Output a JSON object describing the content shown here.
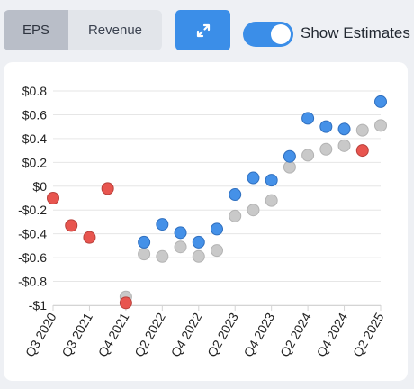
{
  "toolbar": {
    "metric_tabs": [
      {
        "label": "EPS",
        "selected": true
      },
      {
        "label": "Revenue",
        "selected": false
      }
    ],
    "expand_icon": "expand-arrows-icon",
    "show_estimates": {
      "label": "Show Estimates",
      "enabled": true
    }
  },
  "colors": {
    "beat": "#4591e8",
    "miss": "#e8554f",
    "estimate": "#c9c9c9",
    "accent": "#3b8ee8"
  },
  "chart_data": {
    "type": "scatter",
    "title": "",
    "xlabel": "",
    "ylabel": "",
    "ylim": [
      -1,
      0.8
    ],
    "y_ticks": [
      {
        "value": 0.8,
        "label": "$0.8"
      },
      {
        "value": 0.6,
        "label": "$0.6"
      },
      {
        "value": 0.4,
        "label": "$0.4"
      },
      {
        "value": 0.2,
        "label": "$0.2"
      },
      {
        "value": 0,
        "label": "$0"
      },
      {
        "value": -0.2,
        "label": "-$0.2"
      },
      {
        "value": -0.4,
        "label": "-$0.4"
      },
      {
        "value": -0.6,
        "label": "-$0.6"
      },
      {
        "value": -0.8,
        "label": "-$0.8"
      },
      {
        "value": -1,
        "label": "-$1"
      }
    ],
    "x_tick_labels": [
      "Q3 2020",
      "Q3 2021",
      "Q4 2021",
      "Q2 2022",
      "Q4 2022",
      "Q2 2023",
      "Q4 2023",
      "Q2 2024",
      "Q4 2024",
      "Q2 2025"
    ],
    "x_tick_positions": [
      0,
      2,
      4,
      6,
      8,
      10,
      12,
      14,
      16,
      18
    ],
    "grid": true,
    "legend": "none",
    "points": [
      {
        "x": 0,
        "actual": -0.1,
        "estimate": null,
        "status": "miss"
      },
      {
        "x": 1,
        "actual": -0.33,
        "estimate": null,
        "status": "miss"
      },
      {
        "x": 2,
        "actual": -0.43,
        "estimate": null,
        "status": "miss"
      },
      {
        "x": 3,
        "actual": -0.02,
        "estimate": null,
        "status": "miss"
      },
      {
        "x": 4,
        "actual": -0.98,
        "estimate": -0.93,
        "status": "miss"
      },
      {
        "x": 5,
        "actual": -0.47,
        "estimate": -0.57,
        "status": "beat"
      },
      {
        "x": 6,
        "actual": -0.32,
        "estimate": -0.59,
        "status": "beat"
      },
      {
        "x": 7,
        "actual": -0.39,
        "estimate": -0.51,
        "status": "beat"
      },
      {
        "x": 8,
        "actual": -0.47,
        "estimate": -0.59,
        "status": "beat"
      },
      {
        "x": 9,
        "actual": -0.36,
        "estimate": -0.54,
        "status": "beat"
      },
      {
        "x": 10,
        "actual": -0.07,
        "estimate": -0.25,
        "status": "beat"
      },
      {
        "x": 11,
        "actual": 0.07,
        "estimate": -0.2,
        "status": "beat"
      },
      {
        "x": 12,
        "actual": 0.05,
        "estimate": -0.12,
        "status": "beat"
      },
      {
        "x": 13,
        "actual": 0.25,
        "estimate": 0.16,
        "status": "beat"
      },
      {
        "x": 14,
        "actual": 0.57,
        "estimate": 0.26,
        "status": "beat"
      },
      {
        "x": 15,
        "actual": 0.5,
        "estimate": 0.31,
        "status": "beat"
      },
      {
        "x": 16,
        "actual": 0.48,
        "estimate": 0.34,
        "status": "beat"
      },
      {
        "x": 17,
        "actual": 0.3,
        "estimate": 0.47,
        "status": "miss"
      },
      {
        "x": 18,
        "actual": 0.71,
        "estimate": 0.51,
        "status": "beat"
      }
    ]
  }
}
